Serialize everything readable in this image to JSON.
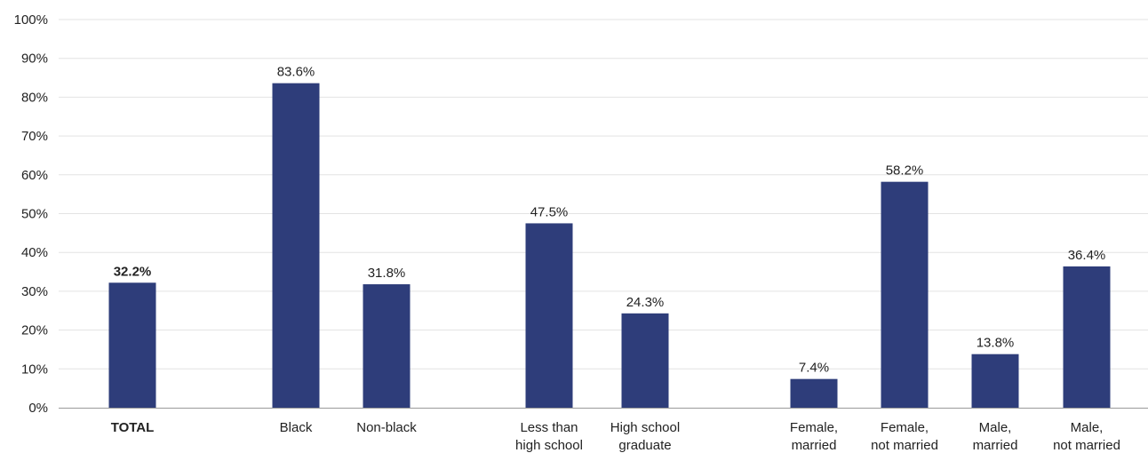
{
  "chart_data": {
    "type": "bar",
    "categories": [
      "TOTAL",
      "Black",
      "Non-black",
      "Less than\nhigh school",
      "High school\ngraduate",
      "Female,\nmarried",
      "Female,\nnot married",
      "Male,\nmarried",
      "Male,\nnot married"
    ],
    "values": [
      32.2,
      83.6,
      31.8,
      47.5,
      24.3,
      7.4,
      58.2,
      13.8,
      36.4
    ],
    "value_labels": [
      "32.2%",
      "83.6%",
      "31.8%",
      "47.5%",
      "24.3%",
      "7.4%",
      "58.2%",
      "13.8%",
      "36.4%"
    ],
    "bold_categories": [
      "TOTAL"
    ],
    "y_ticks": [
      "0%",
      "10%",
      "20%",
      "30%",
      "40%",
      "50%",
      "60%",
      "70%",
      "80%",
      "90%",
      "100%"
    ],
    "ylim": [
      0,
      100
    ],
    "grid": true,
    "bar_color": "#2e3d7a",
    "grid_color": "#e3e3e3",
    "axis_color": "#9a9a9a",
    "title": "",
    "xlabel": "",
    "ylabel": ""
  }
}
